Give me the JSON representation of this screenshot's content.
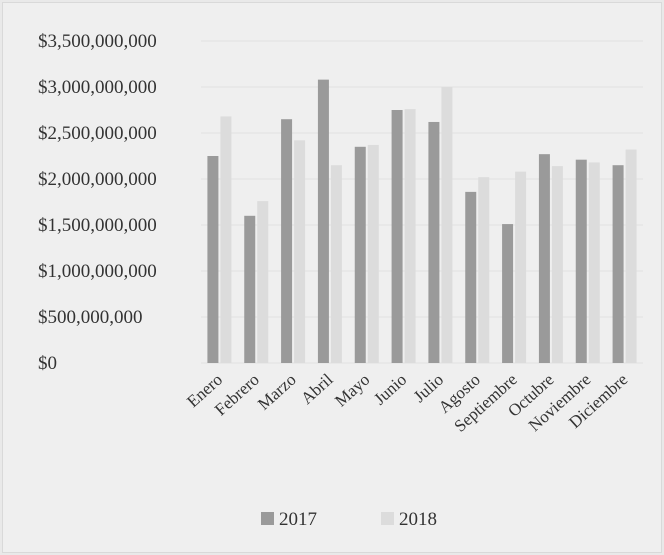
{
  "chart_data": {
    "type": "bar",
    "categories": [
      "Enero",
      "Febrero",
      "Marzo",
      "Abril",
      "Mayo",
      "Junio",
      "Julio",
      "Agosto",
      "Septiembre",
      "Octubre",
      "Noviembre",
      "Diciembre"
    ],
    "series": [
      {
        "name": "2017",
        "color": "#9a9a9a",
        "values": [
          2250000000,
          1600000000,
          2650000000,
          3080000000,
          2350000000,
          2750000000,
          2620000000,
          1860000000,
          1510000000,
          2270000000,
          2210000000,
          2150000000
        ]
      },
      {
        "name": "2018",
        "color": "#dcdcdc",
        "values": [
          2680000000,
          1760000000,
          2420000000,
          2150000000,
          2370000000,
          2760000000,
          3000000000,
          2020000000,
          2080000000,
          2140000000,
          2180000000,
          2320000000
        ]
      }
    ],
    "y_tick_labels": [
      "$0",
      "$500,000,000",
      "$1,000,000,000",
      "$1,500,000,000",
      "$2,000,000,000",
      "$2,500,000,000",
      "$3,000,000,000",
      "$3,500,000,000"
    ],
    "ylim": [
      0,
      3500000000
    ],
    "ystep": 500000000,
    "grid": true,
    "legend_position": "bottom",
    "title": "",
    "xlabel": "",
    "ylabel": ""
  }
}
